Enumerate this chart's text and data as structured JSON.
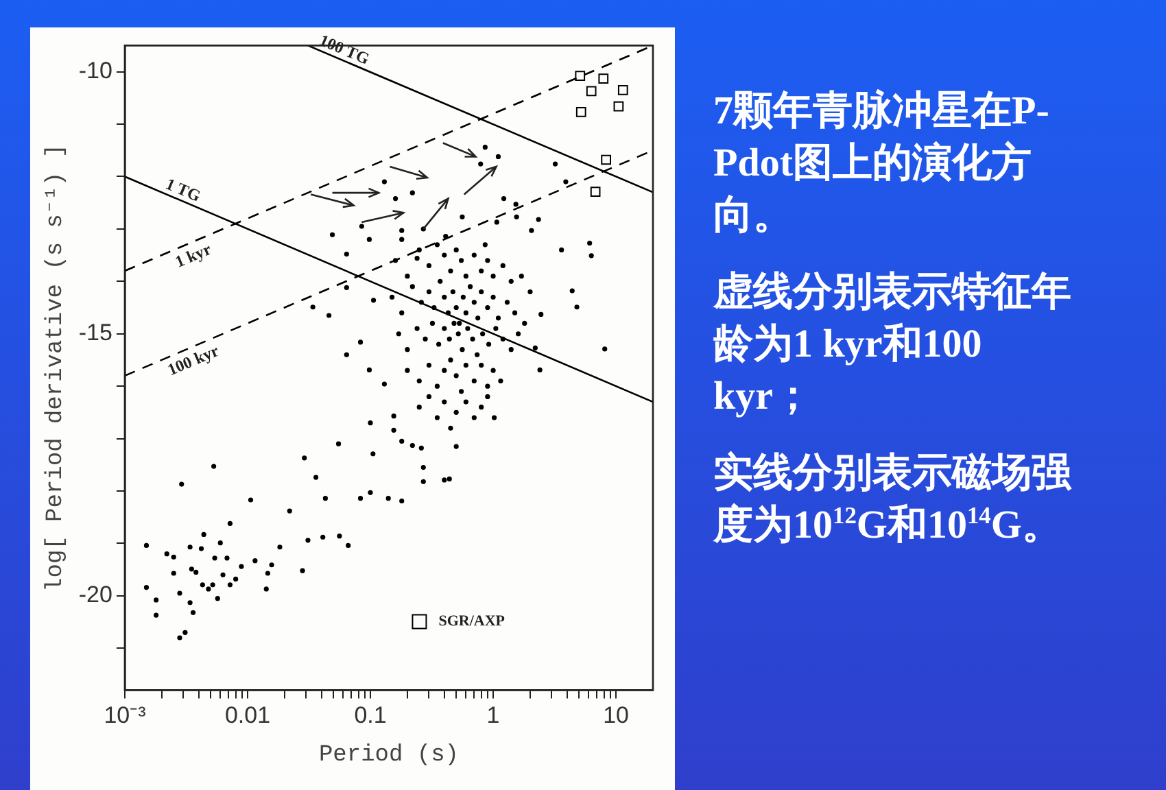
{
  "chart_data": {
    "type": "scatter",
    "xlabel": "Period (s)",
    "ylabel": "log[ Period derivative (s s⁻¹) ]",
    "log": "x",
    "grid": false,
    "legend": "bottom right",
    "xlim": [
      0.001,
      20
    ],
    "ylim": [
      -21.8,
      -9.5
    ],
    "xticks": [
      {
        "value": 0.001,
        "label": "10⁻³"
      },
      {
        "value": 0.002,
        "label": null
      },
      {
        "value": 0.003,
        "label": null
      },
      {
        "value": 0.004,
        "label": null
      },
      {
        "value": 0.005,
        "label": null
      },
      {
        "value": 0.006,
        "label": null
      },
      {
        "value": 0.007,
        "label": null
      },
      {
        "value": 0.008,
        "label": null
      },
      {
        "value": 0.009,
        "label": null
      },
      0.01,
      {
        "value": 0.02,
        "label": null
      },
      {
        "value": 0.03,
        "label": null
      },
      {
        "value": 0.04,
        "label": null
      },
      {
        "value": 0.05,
        "label": null
      },
      {
        "value": 0.06,
        "label": null
      },
      {
        "value": 0.07,
        "label": null
      },
      {
        "value": 0.08,
        "label": null
      },
      {
        "value": 0.09,
        "label": null
      },
      0.1,
      {
        "value": 0.2,
        "label": null
      },
      {
        "value": 0.3,
        "label": null
      },
      {
        "value": 0.4,
        "label": null
      },
      {
        "value": 0.5,
        "label": null
      },
      {
        "value": 0.6,
        "label": null
      },
      {
        "value": 0.7,
        "label": null
      },
      {
        "value": 0.8,
        "label": null
      },
      {
        "value": 0.9,
        "label": null
      },
      1,
      {
        "value": 2,
        "label": null
      },
      {
        "value": 3,
        "label": null
      },
      {
        "value": 4,
        "label": null
      },
      {
        "value": 5,
        "label": null
      },
      {
        "value": 6,
        "label": null
      },
      {
        "value": 7,
        "label": null
      },
      {
        "value": 8,
        "label": null
      },
      {
        "value": 9,
        "label": null
      },
      10
    ],
    "yticks": [
      -10,
      {
        "value": -11,
        "label": null
      },
      {
        "value": -12,
        "label": null
      },
      {
        "value": -13,
        "label": null
      },
      {
        "value": -14,
        "label": null
      },
      -15,
      {
        "value": -16,
        "label": null
      },
      {
        "value": -17,
        "label": null
      },
      {
        "value": -18,
        "label": null
      },
      {
        "value": -19,
        "label": null
      },
      -20,
      {
        "value": -21,
        "label": null
      }
    ],
    "series": [
      {
        "type": "scatter",
        "marker": "circle",
        "color": "#000000",
        "x": [
          0.0015,
          0.0015,
          0.0018,
          0.0018,
          0.0022,
          0.0025,
          0.0025,
          0.0028,
          0.0028,
          0.0031,
          0.0029,
          0.0034,
          0.0035,
          0.0038,
          0.0034,
          0.0036,
          0.0042,
          0.0044,
          0.0043,
          0.0048,
          0.0052,
          0.0054,
          0.0057,
          0.006,
          0.0053,
          0.0063,
          0.0068,
          0.0072,
          0.0072,
          0.008,
          0.0089,
          0.0106,
          0.0115,
          0.0146,
          0.0142,
          0.0157,
          0.0183,
          0.022,
          0.028,
          0.029,
          0.031,
          0.036,
          0.041,
          0.043,
          0.055,
          0.056,
          0.066,
          0.083,
          0.1,
          0.1,
          0.105,
          0.14,
          0.155,
          0.155,
          0.18,
          0.18,
          0.22,
          0.26,
          0.27,
          0.27,
          0.4,
          0.44,
          0.5,
          1.02,
          0.049,
          0.064,
          0.064,
          0.034,
          0.046,
          0.064,
          0.083,
          0.098,
          0.13,
          0.106,
          0.13,
          0.16,
          0.22,
          0.86,
          1.1,
          0.79,
          3.2,
          3.9,
          6.1,
          6.3,
          4.8,
          8.1,
          4.4,
          2.45,
          2.2,
          2.4,
          1.53,
          2.34,
          2.05,
          3.6,
          1.22,
          1.07,
          0.56,
          0.41,
          0.27,
          0.085,
          0.098,
          0.18,
          0.18,
          0.24,
          0.86,
          1.55,
          0.16,
          0.2,
          0.25,
          0.3,
          0.35,
          0.4,
          0.45,
          0.5,
          0.55,
          0.6,
          0.7,
          0.8,
          0.9,
          1.0,
          1.2,
          1.4,
          1.7,
          2.0,
          0.15,
          0.18,
          0.22,
          0.26,
          0.3,
          0.33,
          0.37,
          0.4,
          0.43,
          0.47,
          0.5,
          0.53,
          0.57,
          0.6,
          0.65,
          0.7,
          0.75,
          0.8,
          0.9,
          1.0,
          1.1,
          1.3,
          1.5,
          1.8,
          0.17,
          0.2,
          0.24,
          0.28,
          0.32,
          0.36,
          0.4,
          0.44,
          0.48,
          0.52,
          0.56,
          0.62,
          0.68,
          0.74,
          0.82,
          0.92,
          1.05,
          1.2,
          1.4,
          1.6,
          0.2,
          0.25,
          0.3,
          0.35,
          0.4,
          0.45,
          0.5,
          0.55,
          0.6,
          0.7,
          0.8,
          0.9,
          1.0,
          1.15,
          0.25,
          0.3,
          0.35,
          0.4,
          0.45,
          0.5,
          0.6,
          0.7,
          0.8,
          0.9
        ],
        "values": [
          -19.04,
          -19.84,
          -20.08,
          -20.37,
          -19.2,
          -19.26,
          -19.57,
          -19.95,
          -20.8,
          -20.7,
          -17.87,
          -19.07,
          -19.49,
          -19.55,
          -20.13,
          -20.32,
          -19.1,
          -18.83,
          -19.79,
          -19.87,
          -19.79,
          -19.28,
          -20.05,
          -18.99,
          -17.53,
          -19.6,
          -19.28,
          -18.62,
          -19.79,
          -19.68,
          -19.44,
          -18.17,
          -19.33,
          -19.57,
          -19.87,
          -19.41,
          -19.07,
          -18.38,
          -19.52,
          -17.37,
          -18.94,
          -17.74,
          -18.88,
          -18.14,
          -17.1,
          -18.86,
          -19.04,
          -18.14,
          -18.03,
          -16.7,
          -17.29,
          -18.14,
          -16.57,
          -16.84,
          -17.05,
          -18.19,
          -17.13,
          -17.18,
          -17.55,
          -17.82,
          -17.79,
          -17.77,
          -17.15,
          -16.6,
          -13.11,
          -13.48,
          -14.12,
          -14.49,
          -14.65,
          -15.4,
          -15.16,
          -15.69,
          -15.96,
          -14.36,
          -12.1,
          -12.42,
          -12.31,
          -11.44,
          -11.62,
          -11.76,
          -11.76,
          -12.1,
          -13.27,
          -13.51,
          -14.49,
          -15.29,
          -14.18,
          -14.63,
          -15.27,
          -15.69,
          -12.53,
          -12.82,
          -13.03,
          -13.4,
          -12.42,
          -12.87,
          -12.77,
          -13.14,
          -13.0,
          -12.95,
          -13.2,
          -13.03,
          -13.2,
          -13.56,
          -13.3,
          -12.77,
          -13.6,
          -13.9,
          -13.4,
          -13.7,
          -13.3,
          -13.5,
          -13.8,
          -13.4,
          -13.6,
          -13.9,
          -13.5,
          -13.8,
          -13.6,
          -13.9,
          -13.7,
          -14.0,
          -13.9,
          -14.2,
          -14.3,
          -14.6,
          -14.1,
          -14.4,
          -14.2,
          -14.5,
          -14.0,
          -14.3,
          -14.6,
          -14.2,
          -14.5,
          -14.8,
          -14.3,
          -14.6,
          -14.1,
          -14.4,
          -14.7,
          -14.2,
          -14.5,
          -14.3,
          -14.7,
          -14.4,
          -14.6,
          -14.8,
          -15.0,
          -15.3,
          -14.9,
          -15.1,
          -14.8,
          -15.2,
          -14.9,
          -15.1,
          -14.8,
          -15.0,
          -15.3,
          -14.9,
          -15.1,
          -15.4,
          -15.0,
          -15.2,
          -14.9,
          -15.1,
          -15.3,
          -15.0,
          -15.7,
          -15.9,
          -15.6,
          -16.0,
          -15.7,
          -15.5,
          -15.8,
          -16.1,
          -15.6,
          -15.9,
          -15.6,
          -16.0,
          -15.7,
          -15.9,
          -16.4,
          -16.2,
          -16.6,
          -16.3,
          -16.8,
          -16.5,
          -16.3,
          -16.6,
          -16.4,
          -16.2
        ]
      },
      {
        "type": "scatter",
        "name": "SGR/AXP",
        "marker": "square",
        "color": "#000000",
        "x": [
          5.1,
          7.9,
          6.3,
          11.4,
          5.2,
          10.5,
          8.3,
          6.8
        ],
        "values": [
          -10.08,
          -10.13,
          -10.37,
          -10.35,
          -10.77,
          -10.66,
          -11.68,
          -12.29
        ]
      },
      {
        "type": "line",
        "name": "1 TG",
        "line_style": "solid",
        "color": "#000000",
        "x": [
          0.001,
          20
        ],
        "values": [
          -12.0,
          -16.3
        ]
      },
      {
        "type": "line",
        "name": "100 TG",
        "line_style": "solid",
        "color": "#000000",
        "x": [
          0.031,
          20
        ],
        "values": [
          -9.5,
          -12.3
        ]
      },
      {
        "type": "line",
        "name": "1 kyr",
        "line_style": "dashed",
        "color": "#000000",
        "x": [
          0.001,
          20
        ],
        "values": [
          -13.8,
          -9.5
        ]
      },
      {
        "type": "line",
        "name": "100 kyr",
        "line_style": "dashed",
        "color": "#000000",
        "x": [
          0.001,
          20
        ],
        "values": [
          -15.8,
          -11.5
        ]
      }
    ],
    "annotations": [
      "7颗年青脉冲星在P-Pdot图上的演化方向。",
      "虚线分别表示特征年龄为1 kyr和100 kyr；",
      "实线分别表示磁场强度为10$^{12}$G和10$^{14}$G。"
    ]
  }
}
